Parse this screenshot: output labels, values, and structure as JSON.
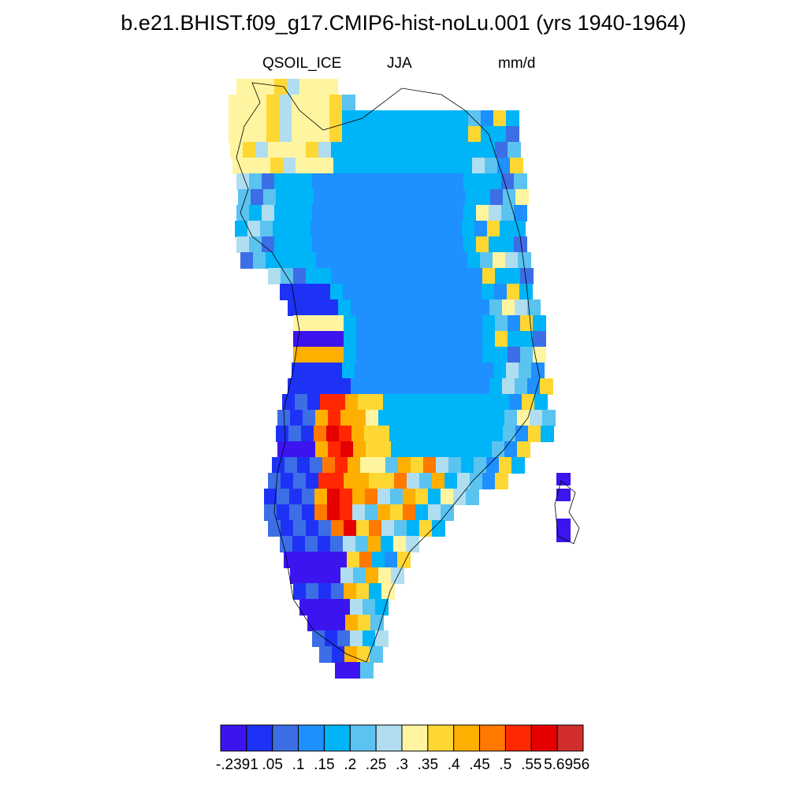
{
  "title": "b.e21.BHIST.f09_g17.CMIP6-hist-noLu.001 (yrs 1940-1964)",
  "subtitle": {
    "variable": "QSOIL_ICE",
    "season": "JJA",
    "units": "mm/d"
  },
  "colorbar": {
    "colors": [
      "#3c14f0",
      "#1e32f5",
      "#3c6ee6",
      "#1e90ff",
      "#00b4f8",
      "#5ac3f0",
      "#b0def0",
      "#fff5a0",
      "#ffd732",
      "#ffaf00",
      "#ff7800",
      "#ff2800",
      "#e60000",
      "#d22d2d"
    ],
    "labels": [
      "-.2391",
      ".05",
      ".1",
      ".15",
      ".2",
      ".25",
      ".3",
      ".35",
      ".4",
      ".45",
      ".5",
      ".55",
      "5.6956"
    ]
  },
  "map_data": {
    "region": "Greenland",
    "field": "QSOIL_ICE",
    "classes_by_latitude_band": [
      {
        "band": "north coast",
        "classes": [
          4,
          4,
          5,
          1,
          4,
          3,
          5,
          2,
          4,
          5,
          6,
          4
        ]
      },
      {
        "band": "interior",
        "classes": [
          3,
          3,
          3,
          3,
          3,
          3
        ]
      },
      {
        "band": "southwest margin",
        "classes": [
          0,
          7,
          9,
          11,
          12,
          10,
          8
        ]
      },
      {
        "band": "southern tip",
        "classes": [
          0,
          0,
          2,
          8,
          9,
          7
        ]
      }
    ]
  }
}
